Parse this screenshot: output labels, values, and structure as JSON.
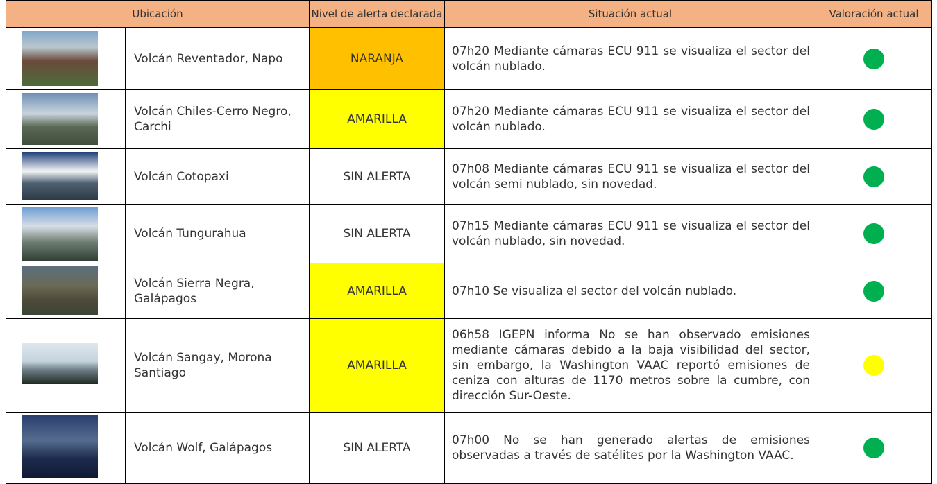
{
  "table": {
    "headers": [
      "Ubicación",
      "Nivel de alerta declarada",
      "Situación actual",
      "Valoración actual"
    ],
    "rows": [
      {
        "location": "Volcán Reventador, Napo",
        "alert": "NARANJA",
        "alert_color": "#ffc000",
        "situation": "07h20 Mediante cámaras ECU 911 se visualiza el sector del volcán nublado.",
        "status_color": "#00b050"
      },
      {
        "location": "Volcán Chiles-Cerro Negro, Carchi",
        "alert": "AMARILLA",
        "alert_color": "#ffff00",
        "situation": "07h20 Mediante cámaras ECU 911 se visualiza el sector del volcán nublado.",
        "status_color": "#00b050"
      },
      {
        "location": "Volcán Cotopaxi",
        "alert": "SIN ALERTA",
        "alert_color": "#ffffff",
        "situation": "07h08 Mediante cámaras ECU 911 se visualiza el sector del volcán semi nublado, sin novedad.",
        "status_color": "#00b050"
      },
      {
        "location": "Volcán Tungurahua",
        "alert": "SIN ALERTA",
        "alert_color": "#ffffff",
        "situation": "07h15 Mediante cámaras ECU 911 se visualiza el sector del volcán nublado, sin novedad.",
        "status_color": "#00b050"
      },
      {
        "location": "Volcán Sierra Negra, Galápagos",
        "alert": "AMARILLA",
        "alert_color": "#ffff00",
        "situation": "07h10 Se visualiza el sector del volcán nublado.",
        "status_color": "#00b050"
      },
      {
        "location": "Volcán Sangay, Morona Santiago",
        "alert": "AMARILLA",
        "alert_color": "#ffff00",
        "situation": "06h58 IGEPN informa No se han observado emisiones mediante cámaras debido a la baja visibilidad del sector, sin embargo, la Washington VAAC reportó emisiones de ceniza con alturas de 1170 metros sobre la cumbre, con dirección Sur-Oeste.",
        "status_color": "#ffff00"
      },
      {
        "location": "Volcán Wolf, Galápagos",
        "alert": "SIN ALERTA",
        "alert_color": "#ffffff",
        "situation": "07h00 No se han generado alertas de emisiones observadas a través de satélites por la Washington VAAC.",
        "status_color": "#00b050"
      }
    ]
  }
}
